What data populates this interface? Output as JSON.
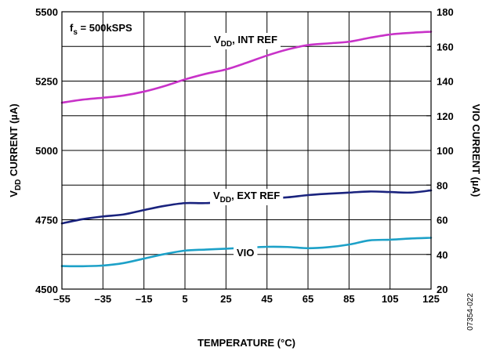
{
  "chart_data": {
    "type": "line",
    "xlabel": "TEMPERATURE (°C)",
    "x_ticks": [
      -55,
      -35,
      -15,
      5,
      25,
      45,
      65,
      85,
      105,
      125
    ],
    "x_tick_labels": [
      "–55",
      "–35",
      "–15",
      "5",
      "25",
      "45",
      "65",
      "85",
      "105",
      "125"
    ],
    "xlim": [
      -55,
      125
    ],
    "ylabel_left": {
      "main": "V",
      "sub": "DD",
      "rest": " CURRENT (µA)"
    },
    "ylim_left": [
      4500,
      5500
    ],
    "y_ticks_left": [
      4500,
      4750,
      5000,
      5250,
      5500
    ],
    "ylabel_right": "VIO CURRENT (µA)",
    "ylim_right": [
      20,
      180
    ],
    "y_ticks_right": [
      20,
      40,
      60,
      80,
      100,
      120,
      140,
      160,
      180
    ],
    "grid": true,
    "series": [
      {
        "name": "VDD, INT REF",
        "axis": "left",
        "color": "#c832c8",
        "x": [
          -55,
          -45,
          -35,
          -25,
          -15,
          -5,
          5,
          15,
          25,
          35,
          45,
          55,
          65,
          75,
          85,
          95,
          105,
          115,
          125
        ],
        "y": [
          5172,
          5183,
          5190,
          5198,
          5212,
          5232,
          5256,
          5276,
          5292,
          5316,
          5342,
          5364,
          5380,
          5386,
          5392,
          5406,
          5418,
          5424,
          5428
        ]
      },
      {
        "name": "VDD, EXT REF",
        "axis": "left",
        "color": "#1a237e",
        "x": [
          -55,
          -45,
          -35,
          -25,
          -15,
          -5,
          5,
          15,
          25,
          35,
          45,
          55,
          65,
          75,
          85,
          95,
          105,
          115,
          125
        ],
        "y": [
          4737,
          4752,
          4762,
          4769,
          4785,
          4800,
          4810,
          4810,
          4816,
          4821,
          4826,
          4831,
          4839,
          4844,
          4848,
          4852,
          4850,
          4848,
          4856
        ]
      },
      {
        "name": "VIO",
        "axis": "right",
        "color": "#1da1c8",
        "x": [
          -55,
          -45,
          -35,
          -25,
          -15,
          -5,
          5,
          15,
          25,
          35,
          45,
          55,
          65,
          75,
          85,
          95,
          105,
          115,
          125
        ],
        "y": [
          33.3,
          33.2,
          33.6,
          35.0,
          37.6,
          40.2,
          42.2,
          42.8,
          43.3,
          43.9,
          44.4,
          44.3,
          43.6,
          44.2,
          45.7,
          48.1,
          48.5,
          49.2,
          49.6
        ]
      }
    ],
    "annotations": [
      {
        "id": "fs",
        "text_main": "f",
        "text_sub": "s",
        "text_rest": " = 500kSPS"
      },
      {
        "id": "int",
        "text_main": "V",
        "text_sub": "DD",
        "text_rest": ", INT REF"
      },
      {
        "id": "ext",
        "text_main": "V",
        "text_sub": "DD",
        "text_rest": ", EXT REF"
      },
      {
        "id": "vio",
        "text": "VIO"
      }
    ],
    "figure_id": "07354-022"
  }
}
